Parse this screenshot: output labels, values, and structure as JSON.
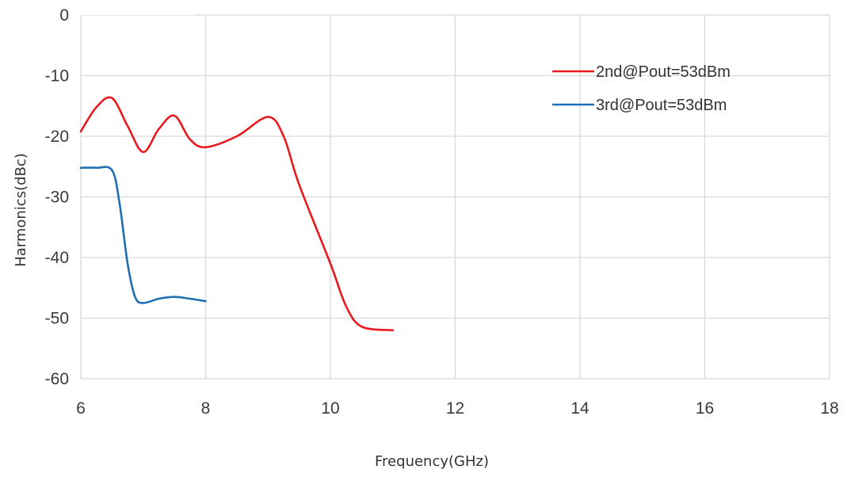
{
  "chart_data": {
    "type": "line",
    "title": "",
    "xlabel": "Frequency(GHz)",
    "ylabel": "Harmonics(dBc)",
    "xlim": [
      6,
      18
    ],
    "ylim": [
      -60,
      0
    ],
    "xticks": [
      6,
      8,
      10,
      12,
      14,
      16,
      18
    ],
    "yticks": [
      0,
      -10,
      -20,
      -30,
      -40,
      -50,
      -60
    ],
    "grid": true,
    "legend_position": "top-right",
    "series": [
      {
        "name": "2nd@Pout=53dBm",
        "color": "#e8191f",
        "x": [
          6,
          6.25,
          6.5,
          6.75,
          7,
          7.25,
          7.5,
          7.75,
          8,
          8.5,
          9,
          9.25,
          9.5,
          10,
          10.25,
          10.5,
          11
        ],
        "y": [
          -19.2,
          -15.2,
          -13.7,
          -18.3,
          -22.6,
          -18.8,
          -16.6,
          -20.5,
          -21.8,
          -20,
          -16.8,
          -20,
          -28,
          -41,
          -48,
          -51.4,
          -52
        ]
      },
      {
        "name": "3rd@Pout=53dBm",
        "color": "#1f6fb4",
        "x": [
          6,
          6.25,
          6.5,
          6.62,
          6.75,
          6.87,
          7,
          7.25,
          7.5,
          7.75,
          8
        ],
        "y": [
          -25.2,
          -25.2,
          -25.6,
          -31,
          -41,
          -46.5,
          -47.5,
          -46.8,
          -46.5,
          -46.8,
          -47.2
        ]
      }
    ]
  }
}
